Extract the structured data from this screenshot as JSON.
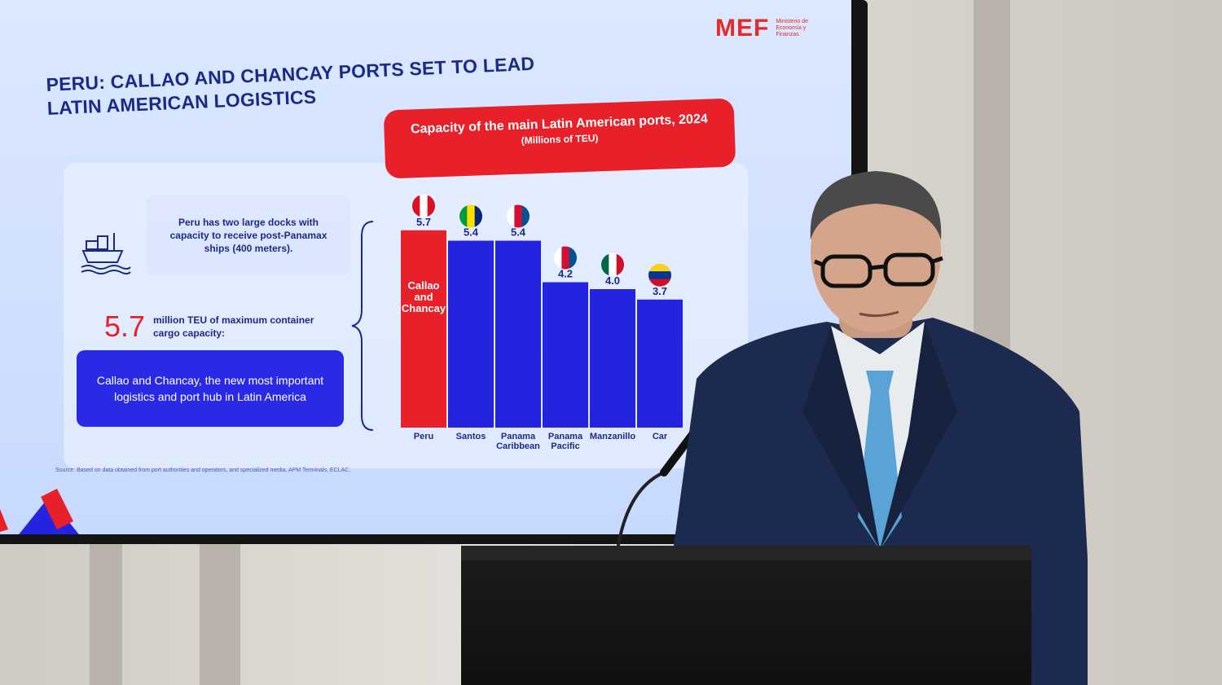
{
  "slide": {
    "title": "PERU: CALLAO AND CHANCAY PORTS SET TO LEAD LATIN AMERICAN LOGISTICS",
    "logo": {
      "text": "MEF",
      "subtitle": "Ministerio de Economía y Finanzas"
    },
    "docks_text": "Peru has two large docks with capacity to receive post-Panamax ships (400 meters).",
    "capacity_number": "5.7",
    "capacity_text": "million TEU of maximum container cargo capacity:",
    "callout_text": "Callao and Chancay, the new most important logistics and port hub in Latin America",
    "source_text": "Source: Based on data obtained from port authorities and operators, and specialized media, APM Terminals, ECLAC.",
    "colors": {
      "highlight": "#e8202a",
      "bar": "#2323e0",
      "title": "#1b2a8a"
    }
  },
  "chart_data": {
    "type": "bar",
    "title": "Capacity of the main Latin American ports, 2024",
    "subtitle": "(Millions of TEU)",
    "categories": [
      "Peru",
      "Santos",
      "Panama Caribbean",
      "Panama Pacific",
      "Manzanillo",
      "Car"
    ],
    "values": [
      5.7,
      5.4,
      5.4,
      4.2,
      4.0,
      3.7
    ],
    "value_labels": [
      "5.7",
      "5.4",
      "5.4",
      "4.2",
      "4.0",
      "3.7"
    ],
    "flags": [
      "peru-flag-icon",
      "brazil-flag-icon",
      "panama-flag-icon",
      "panama-flag-icon",
      "mexico-flag-icon",
      "colombia-flag-icon"
    ],
    "highlight_label": "Callao and Chancay",
    "ylim": [
      0,
      6
    ]
  }
}
